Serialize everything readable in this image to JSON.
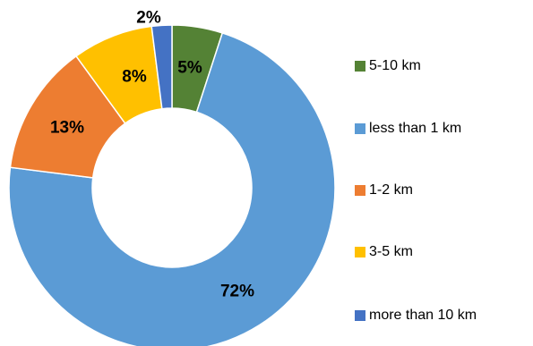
{
  "chart_data": {
    "type": "pie",
    "style": "donut",
    "title": "",
    "legend_position": "right",
    "slices": [
      {
        "label": "5-10 km",
        "value": 5,
        "value_label": "5%",
        "color": "#548235"
      },
      {
        "label": "less than 1 km",
        "value": 72,
        "value_label": "72%",
        "color": "#5B9BD5"
      },
      {
        "label": "1-2 km",
        "value": 13,
        "value_label": "13%",
        "color": "#ED7D31"
      },
      {
        "label": "3-5 km",
        "value": 8,
        "value_label": "8%",
        "color": "#FFC000"
      },
      {
        "label": "more than 10 km",
        "value": 2,
        "value_label": "2%",
        "color": "#4472C4"
      }
    ]
  }
}
